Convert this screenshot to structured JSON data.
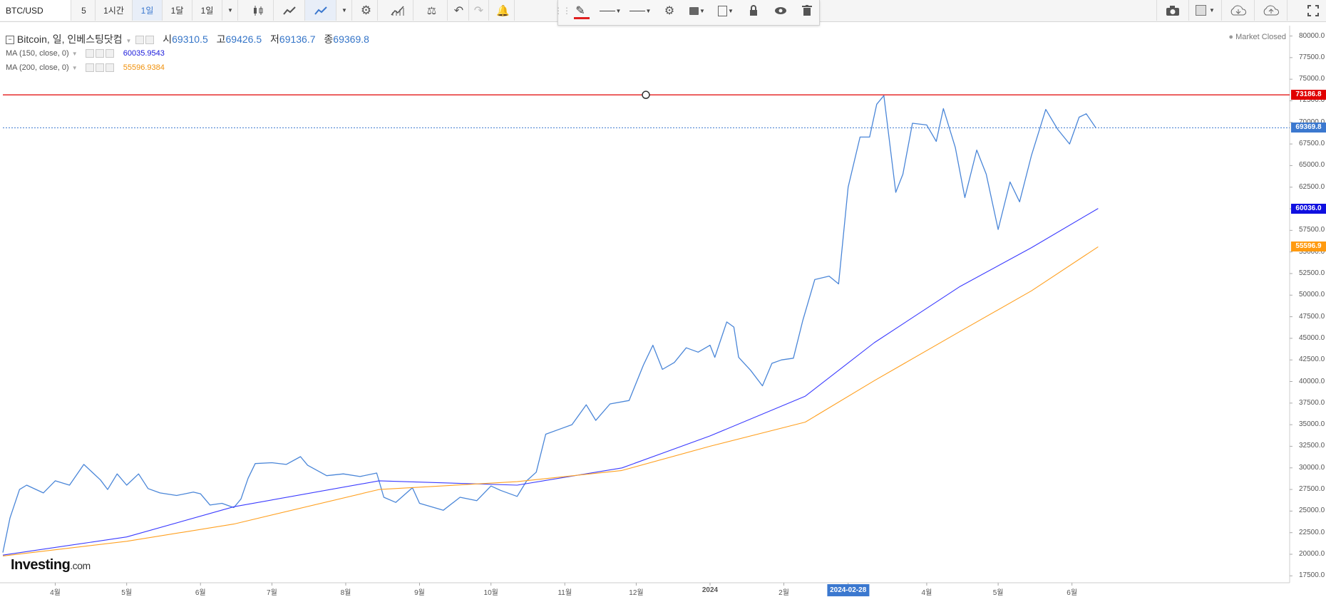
{
  "toolbar": {
    "symbol": "BTC/USD",
    "intervals": [
      "5",
      "1시간",
      "1일",
      "1달",
      "1일"
    ],
    "active_interval_index": 2
  },
  "drawing_toolbar": {
    "accent_color": "#e02020"
  },
  "legend": {
    "name": "Bitcoin, 일, 인베스팅닷컴",
    "open_label": "시",
    "open": "69310.5",
    "high_label": "고",
    "high": "69426.5",
    "low_label": "저",
    "low": "69136.7",
    "close_label": "종",
    "close": "69369.8",
    "ma150_label": "MA (150, close, 0)",
    "ma150_value": "60035.9543",
    "ma200_label": "MA (200, close, 0)",
    "ma200_value": "55596.9384",
    "market_status": "Market Closed"
  },
  "brand": {
    "name": "Investing",
    "suffix": ".com"
  },
  "price_badges": {
    "resistance": "73186.8",
    "last": "69369.8",
    "ma150": "60036.0",
    "ma200": "55596.9"
  },
  "colors": {
    "price": "#4a86d8",
    "ma150": "#3a3aff",
    "ma200": "#ffa020",
    "resistance": "#e00000",
    "last_line": "#3b78cf"
  },
  "chart_data": {
    "type": "line",
    "title": "Bitcoin, 일, 인베스팅닷컴",
    "x_ticks": [
      "4월",
      "5월",
      "6월",
      "7월",
      "8월",
      "9월",
      "10월",
      "11월",
      "12월",
      "2024",
      "2월",
      "2024-02-28",
      "4월",
      "5월",
      "6월"
    ],
    "x_highlight": "2024-02-28",
    "y_ticks": [
      "80000.0",
      "77500.0",
      "75000.0",
      "72500.0",
      "70000.0",
      "67500.0",
      "65000.0",
      "62500.0",
      "60000.0",
      "57500.0",
      "55000.0",
      "52500.0",
      "50000.0",
      "47500.0",
      "45000.0",
      "42500.0",
      "40000.0",
      "37500.0",
      "35000.0",
      "32500.0",
      "30000.0",
      "27500.0",
      "25000.0",
      "22500.0",
      "20000.0",
      "17500.0"
    ],
    "ylim": [
      16700,
      81200
    ],
    "x_range": [
      "2023-03-10",
      "2024-06-12"
    ],
    "horizontal_line": 73186.8,
    "last_price_line": 69369.8,
    "series": [
      {
        "name": "Bitcoin",
        "values": [
          [
            "2023-03-10",
            20200
          ],
          [
            "2023-03-13",
            24200
          ],
          [
            "2023-03-17",
            27500
          ],
          [
            "2023-03-20",
            28000
          ],
          [
            "2023-03-27",
            27100
          ],
          [
            "2023-04-01",
            28500
          ],
          [
            "2023-04-07",
            28000
          ],
          [
            "2023-04-13",
            30400
          ],
          [
            "2023-04-20",
            28600
          ],
          [
            "2023-04-23",
            27500
          ],
          [
            "2023-04-27",
            29300
          ],
          [
            "2023-05-01",
            28000
          ],
          [
            "2023-05-06",
            29300
          ],
          [
            "2023-05-10",
            27600
          ],
          [
            "2023-05-15",
            27100
          ],
          [
            "2023-05-22",
            26800
          ],
          [
            "2023-05-29",
            27200
          ],
          [
            "2023-06-01",
            27000
          ],
          [
            "2023-06-05",
            25700
          ],
          [
            "2023-06-10",
            25900
          ],
          [
            "2023-06-15",
            25400
          ],
          [
            "2023-06-18",
            26400
          ],
          [
            "2023-06-21",
            28800
          ],
          [
            "2023-06-24",
            30500
          ],
          [
            "2023-07-01",
            30600
          ],
          [
            "2023-07-07",
            30400
          ],
          [
            "2023-07-13",
            31300
          ],
          [
            "2023-07-16",
            30300
          ],
          [
            "2023-07-24",
            29100
          ],
          [
            "2023-07-31",
            29300
          ],
          [
            "2023-08-07",
            29000
          ],
          [
            "2023-08-14",
            29400
          ],
          [
            "2023-08-17",
            26600
          ],
          [
            "2023-08-22",
            26000
          ],
          [
            "2023-08-29",
            27700
          ],
          [
            "2023-09-01",
            25900
          ],
          [
            "2023-09-11",
            25100
          ],
          [
            "2023-09-18",
            26600
          ],
          [
            "2023-09-25",
            26200
          ],
          [
            "2023-10-01",
            27900
          ],
          [
            "2023-10-05",
            27400
          ],
          [
            "2023-10-12",
            26700
          ],
          [
            "2023-10-16",
            28500
          ],
          [
            "2023-10-20",
            29500
          ],
          [
            "2023-10-24",
            33900
          ],
          [
            "2023-10-30",
            34500
          ],
          [
            "2023-11-04",
            35000
          ],
          [
            "2023-11-10",
            37300
          ],
          [
            "2023-11-14",
            35500
          ],
          [
            "2023-11-20",
            37400
          ],
          [
            "2023-11-28",
            37800
          ],
          [
            "2023-12-04",
            41900
          ],
          [
            "2023-12-08",
            44200
          ],
          [
            "2023-12-12",
            41400
          ],
          [
            "2023-12-17",
            42200
          ],
          [
            "2023-12-22",
            43900
          ],
          [
            "2023-12-27",
            43400
          ],
          [
            "2024-01-01",
            44200
          ],
          [
            "2024-01-03",
            42800
          ],
          [
            "2024-01-08",
            46900
          ],
          [
            "2024-01-11",
            46300
          ],
          [
            "2024-01-13",
            42800
          ],
          [
            "2024-01-18",
            41300
          ],
          [
            "2024-01-23",
            39500
          ],
          [
            "2024-01-27",
            42100
          ],
          [
            "2024-01-31",
            42500
          ],
          [
            "2024-02-05",
            42700
          ],
          [
            "2024-02-09",
            47100
          ],
          [
            "2024-02-14",
            51800
          ],
          [
            "2024-02-20",
            52200
          ],
          [
            "2024-02-24",
            51300
          ],
          [
            "2024-02-28",
            62500
          ],
          [
            "2024-03-04",
            68300
          ],
          [
            "2024-03-08",
            68300
          ],
          [
            "2024-03-11",
            72100
          ],
          [
            "2024-03-14",
            73100
          ],
          [
            "2024-03-19",
            61900
          ],
          [
            "2024-03-22",
            64000
          ],
          [
            "2024-03-26",
            69900
          ],
          [
            "2024-04-01",
            69700
          ],
          [
            "2024-04-05",
            67800
          ],
          [
            "2024-04-08",
            71600
          ],
          [
            "2024-04-13",
            67100
          ],
          [
            "2024-04-17",
            61300
          ],
          [
            "2024-04-22",
            66800
          ],
          [
            "2024-04-26",
            64000
          ],
          [
            "2024-05-01",
            57600
          ],
          [
            "2024-05-06",
            63100
          ],
          [
            "2024-05-10",
            60800
          ],
          [
            "2024-05-15",
            66200
          ],
          [
            "2024-05-21",
            71500
          ],
          [
            "2024-05-26",
            69200
          ],
          [
            "2024-05-31",
            67500
          ],
          [
            "2024-06-04",
            70600
          ],
          [
            "2024-06-07",
            71000
          ],
          [
            "2024-06-11",
            69370
          ]
        ]
      },
      {
        "name": "MA (150, close, 0)",
        "values": [
          [
            "2023-03-10",
            19900
          ],
          [
            "2023-05-01",
            22000
          ],
          [
            "2023-06-15",
            25500
          ],
          [
            "2023-08-15",
            28500
          ],
          [
            "2023-10-12",
            28000
          ],
          [
            "2023-11-25",
            30000
          ],
          [
            "2024-01-01",
            33700
          ],
          [
            "2024-02-10",
            38300
          ],
          [
            "2024-03-10",
            44500
          ],
          [
            "2024-04-15",
            51000
          ],
          [
            "2024-05-15",
            55500
          ],
          [
            "2024-06-12",
            60036
          ]
        ]
      },
      {
        "name": "MA (200, close, 0)",
        "values": [
          [
            "2023-03-10",
            19800
          ],
          [
            "2023-05-01",
            21500
          ],
          [
            "2023-06-15",
            23500
          ],
          [
            "2023-08-15",
            27500
          ],
          [
            "2023-10-12",
            28400
          ],
          [
            "2023-11-25",
            29700
          ],
          [
            "2024-01-01",
            32500
          ],
          [
            "2024-02-10",
            35300
          ],
          [
            "2024-03-10",
            40100
          ],
          [
            "2024-04-15",
            45800
          ],
          [
            "2024-05-15",
            50500
          ],
          [
            "2024-06-12",
            55597
          ]
        ]
      }
    ]
  }
}
